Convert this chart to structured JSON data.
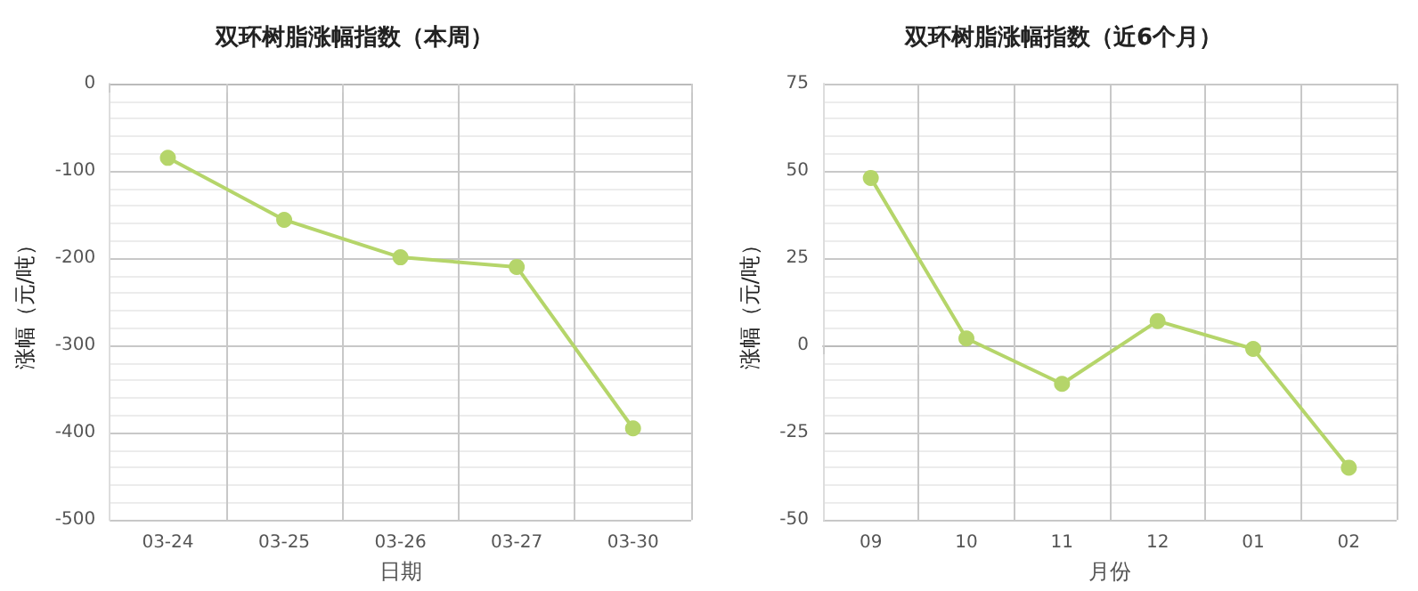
{
  "chart_data": [
    {
      "type": "line",
      "title": "双环树脂涨幅指数（本周）",
      "xlabel": "日期",
      "ylabel": "涨幅（元/吨）",
      "categories": [
        "03-24",
        "03-25",
        "03-26",
        "03-27",
        "03-30"
      ],
      "series": [
        {
          "color": "#b5d56a",
          "values": [
            -85,
            -156,
            -199,
            -210,
            -395
          ]
        }
      ],
      "ylim": [
        -500,
        0
      ],
      "yticks": [
        -500,
        -400,
        -300,
        -200,
        -100,
        0
      ],
      "grid": true,
      "marker": "circle",
      "line_style": "solid"
    },
    {
      "type": "line",
      "title": "双环树脂涨幅指数（近6个月）",
      "xlabel": "月份",
      "ylabel": "涨幅（元/吨）",
      "categories": [
        "09",
        "10",
        "11",
        "12",
        "01",
        "02"
      ],
      "series": [
        {
          "color": "#b5d56a",
          "values": [
            48,
            2,
            -11,
            7,
            -1,
            -35
          ]
        }
      ],
      "ylim": [
        -50,
        75
      ],
      "yticks": [
        -50,
        -25,
        0,
        25,
        50,
        75
      ],
      "grid": true,
      "marker": "circle",
      "line_style": "solid"
    }
  ]
}
